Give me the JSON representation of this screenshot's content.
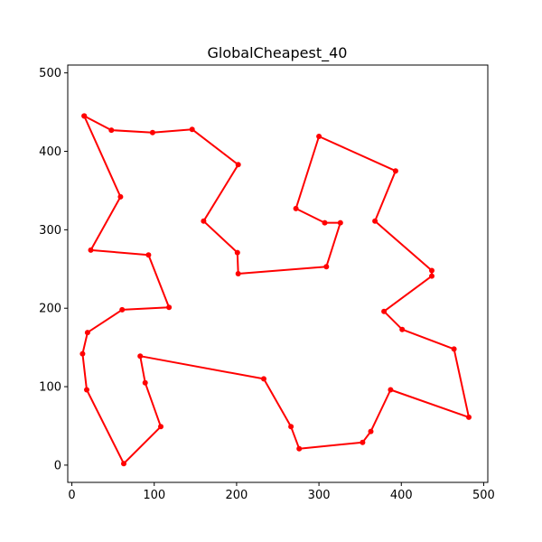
{
  "chart_data": {
    "type": "line",
    "title": "GlobalCheapest_40",
    "xlabel": "",
    "ylabel": "",
    "xlim": [
      -5,
      505
    ],
    "ylim": [
      -22,
      510
    ],
    "xticks": [
      0,
      100,
      200,
      300,
      400,
      500
    ],
    "yticks": [
      0,
      100,
      200,
      300,
      400,
      500
    ],
    "grid": false,
    "legend": "none",
    "color": "#ff0000",
    "marker": "circle",
    "series": [
      {
        "x": [
          15,
          48,
          98,
          146,
          202,
          160,
          201,
          202,
          309,
          326,
          307,
          272,
          300,
          393,
          368,
          437,
          437,
          379,
          401,
          464,
          482,
          387,
          363,
          353,
          276,
          266,
          233,
          83,
          89,
          108,
          63,
          18,
          13,
          19,
          61,
          118,
          93,
          23,
          59,
          15
        ],
        "y": [
          445,
          427,
          424,
          428,
          383,
          311,
          271,
          244,
          253,
          309,
          309,
          327,
          419,
          375,
          311,
          248,
          241,
          196,
          173,
          148,
          61,
          96,
          43,
          29,
          21,
          49,
          110,
          139,
          105,
          49,
          2,
          96,
          142,
          169,
          198,
          201,
          268,
          274,
          342,
          445
        ]
      }
    ]
  }
}
